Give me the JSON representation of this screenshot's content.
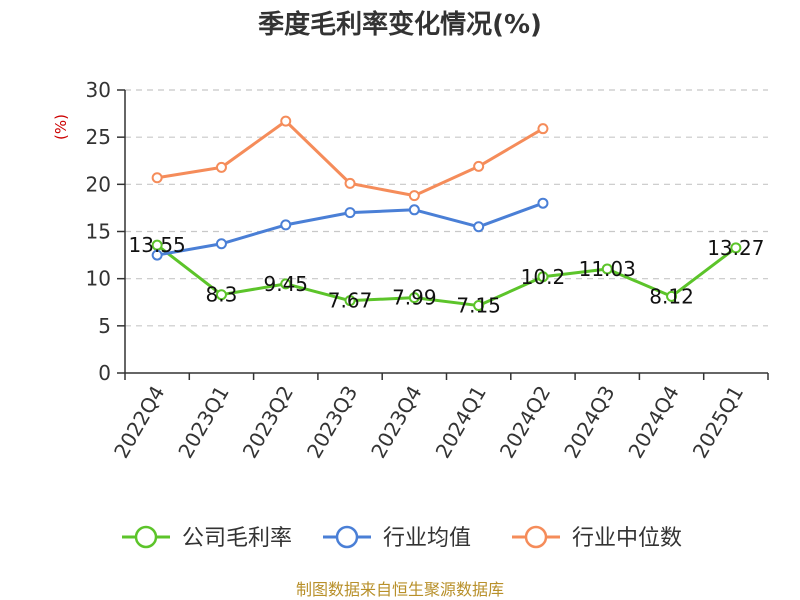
{
  "chart_data": {
    "type": "line",
    "title": "季度毛利率变化情况(%)",
    "unit_label": "(%)",
    "categories": [
      "2022Q4",
      "2023Q1",
      "2023Q2",
      "2023Q3",
      "2023Q4",
      "2024Q1",
      "2024Q2",
      "2024Q3",
      "2024Q4",
      "2025Q1"
    ],
    "ylim": [
      0,
      30
    ],
    "yticks": [
      0,
      5,
      10,
      15,
      20,
      25,
      30
    ],
    "grid": true,
    "legend_position": "bottom",
    "series": [
      {
        "name": "公司毛利率",
        "color": "#5cc42a",
        "show_labels": true,
        "values": [
          13.55,
          8.3,
          9.45,
          7.67,
          7.99,
          7.15,
          10.2,
          11.03,
          8.12,
          13.27
        ],
        "labels": [
          "13.55",
          "8.3",
          "9.45",
          "7.67",
          "7.99",
          "7.15",
          "10.2",
          "11.03",
          "8.12",
          "13.27"
        ]
      },
      {
        "name": "行业均值",
        "color": "#4a7fd6",
        "show_labels": false,
        "values": [
          12.5,
          13.7,
          15.7,
          17.0,
          17.3,
          15.5,
          18.0,
          null,
          null,
          null
        ]
      },
      {
        "name": "行业中位数",
        "color": "#f58c5a",
        "show_labels": false,
        "values": [
          20.7,
          21.8,
          26.7,
          20.1,
          18.8,
          21.9,
          25.9,
          null,
          null,
          null
        ]
      }
    ],
    "source": "制图数据来自恒生聚源数据库"
  }
}
